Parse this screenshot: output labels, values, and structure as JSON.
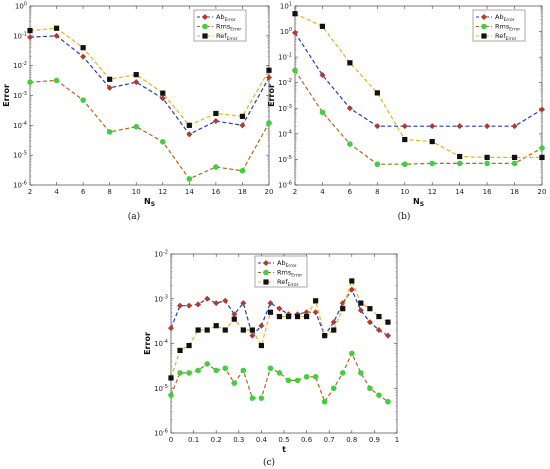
{
  "chart_data": [
    {
      "type": "line",
      "caption": "(a)",
      "xlabel": "N",
      "xlabel_sub": "S",
      "ylabel": "Error",
      "yscale": "log",
      "xlim": [
        2,
        20
      ],
      "ylim_exp": [
        -6,
        0
      ],
      "xticks": [
        2,
        4,
        6,
        8,
        10,
        12,
        14,
        16,
        18,
        20
      ],
      "legend_position": "top-right",
      "x": [
        2,
        4,
        6,
        8,
        10,
        12,
        14,
        16,
        18,
        20
      ],
      "series": [
        {
          "name": "Ab",
          "sub": "Error",
          "color": "#1f3fbf",
          "marker": "diamond-red",
          "values": [
            0.09,
            0.1,
            0.02,
            0.0018,
            0.0028,
            0.0008,
            5e-05,
            0.00014,
            0.0001,
            0.004
          ]
        },
        {
          "name": "Rms",
          "sub": "Error",
          "color": "#b5651d",
          "marker": "circle-green",
          "values": [
            0.0028,
            0.0032,
            0.0007,
            6e-05,
            9e-05,
            2.8e-05,
            1.6e-06,
            4e-06,
            3e-06,
            0.00012
          ]
        },
        {
          "name": "Ref",
          "sub": "Error",
          "color": "#e8b21c",
          "marker": "square-black",
          "values": [
            0.15,
            0.18,
            0.04,
            0.0035,
            0.005,
            0.0012,
            0.0001,
            0.00025,
            0.0002,
            0.007
          ]
        }
      ]
    },
    {
      "type": "line",
      "caption": "(b)",
      "xlabel": "N",
      "xlabel_sub": "S",
      "ylabel": "Error",
      "yscale": "log",
      "xlim": [
        2,
        20
      ],
      "ylim_exp": [
        -6,
        1
      ],
      "xticks": [
        2,
        4,
        6,
        8,
        10,
        12,
        14,
        16,
        18,
        20
      ],
      "legend_position": "top-right",
      "x": [
        2,
        4,
        6,
        8,
        10,
        12,
        14,
        16,
        18,
        20
      ],
      "series": [
        {
          "name": "Ab",
          "sub": "Error",
          "color": "#1f3fbf",
          "marker": "diamond-red",
          "values": [
            0.9,
            0.02,
            0.001,
            0.0002,
            0.0002,
            0.0002,
            0.0002,
            0.0002,
            0.0002,
            0.0009
          ]
        },
        {
          "name": "Rms",
          "sub": "Error",
          "color": "#b5651d",
          "marker": "circle-green",
          "values": [
            0.03,
            0.0007,
            4e-05,
            6.5e-06,
            6.5e-06,
            7e-06,
            7e-06,
            7e-06,
            7e-06,
            2.8e-05
          ]
        },
        {
          "name": "Ref",
          "sub": "Error",
          "color": "#e8b21c",
          "marker": "square-black",
          "values": [
            5,
            1.6,
            0.06,
            0.004,
            6e-05,
            5e-05,
            1.3e-05,
            1.2e-05,
            1.2e-05,
            1.2e-05
          ]
        }
      ]
    },
    {
      "type": "line",
      "caption": "(c)",
      "xlabel": "t",
      "xlabel_sub": "",
      "ylabel": "Error",
      "yscale": "log",
      "xlim": [
        0,
        1
      ],
      "ylim_exp": [
        -6,
        -2
      ],
      "xticks": [
        0,
        0.1,
        0.2,
        0.3,
        0.4,
        0.5,
        0.6,
        0.7,
        0.8,
        0.9,
        1
      ],
      "legend_position": "top-center",
      "x": [
        0,
        0.04,
        0.08,
        0.12,
        0.16,
        0.2,
        0.24,
        0.28,
        0.32,
        0.36,
        0.4,
        0.44,
        0.48,
        0.52,
        0.56,
        0.6,
        0.64,
        0.68,
        0.72,
        0.76,
        0.8,
        0.84,
        0.88,
        0.92,
        0.96
      ],
      "series": [
        {
          "name": "Ab",
          "sub": "Error",
          "color": "#1f3fbf",
          "marker": "diamond-red",
          "values": [
            0.00022,
            0.0007,
            0.0007,
            0.00075,
            0.001,
            0.0008,
            0.0009,
            0.00045,
            0.0008,
            0.00015,
            0.00025,
            0.0008,
            0.0006,
            0.00045,
            0.00045,
            0.0005,
            0.0005,
            0.00015,
            0.0003,
            0.0008,
            0.0016,
            0.00055,
            0.0003,
            0.0002,
            0.00015
          ]
        },
        {
          "name": "Rms",
          "sub": "Error",
          "color": "#b5651d",
          "marker": "circle-green",
          "values": [
            7e-06,
            2.2e-05,
            2.2e-05,
            2.5e-05,
            3.5e-05,
            2.5e-05,
            2.8e-05,
            1.3e-05,
            2.5e-05,
            6e-06,
            6e-06,
            2.8e-05,
            2.2e-05,
            1.5e-05,
            1.5e-05,
            1.8e-05,
            1.8e-05,
            5e-06,
            1e-05,
            2.2e-05,
            6e-05,
            2.2e-05,
            1e-05,
            7e-06,
            5e-06
          ]
        },
        {
          "name": "Ref",
          "sub": "Error",
          "color": "#e8b21c",
          "marker": "square-black",
          "values": [
            1.7e-05,
            7e-05,
            9e-05,
            0.0002,
            0.0002,
            0.00025,
            0.0002,
            0.00035,
            0.0002,
            0.0002,
            9e-05,
            0.0005,
            0.0004,
            0.0004,
            0.0004,
            0.0004,
            0.0009,
            0.00015,
            0.0002,
            0.0006,
            0.0025,
            0.0008,
            0.0006,
            0.0004,
            0.0003
          ]
        }
      ]
    }
  ]
}
